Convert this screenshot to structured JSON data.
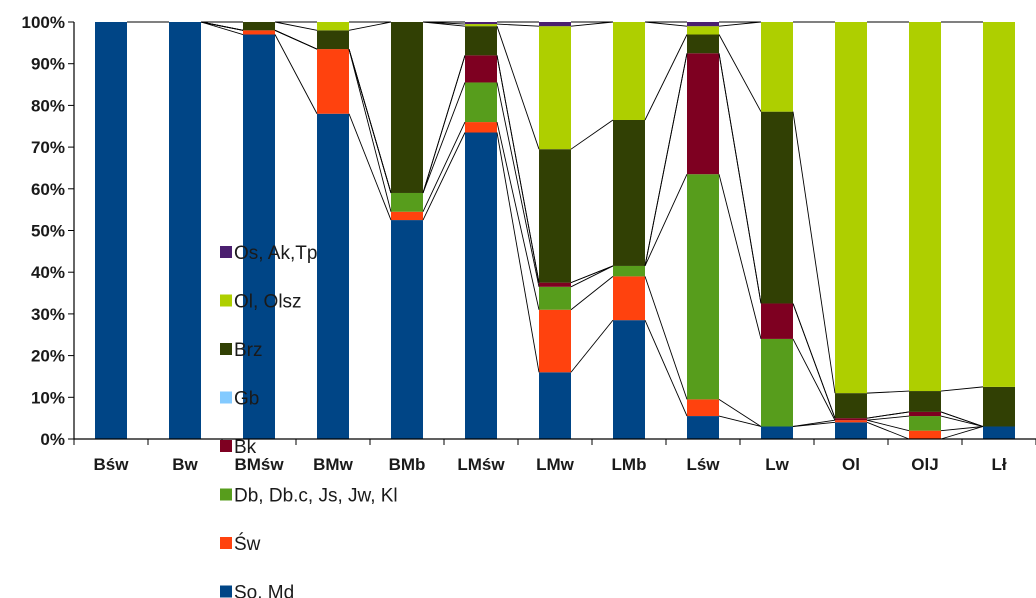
{
  "chart_data": {
    "type": "bar",
    "stacked": "percent",
    "series_lines": true,
    "categories": [
      "Bśw",
      "Bw",
      "BMśw",
      "BMw",
      "BMb",
      "LMśw",
      "LMw",
      "LMb",
      "Lśw",
      "Lw",
      "Ol",
      "OlJ",
      "Lł"
    ],
    "ylim": [
      0,
      100
    ],
    "yticks": [
      "0%",
      "10%",
      "20%",
      "30%",
      "40%",
      "50%",
      "60%",
      "70%",
      "80%",
      "90%",
      "100%"
    ],
    "grid": false,
    "legend_position": "left-inside",
    "series": [
      {
        "name": "So, Md",
        "color": "#004586",
        "values": [
          100,
          100,
          97,
          78,
          52.5,
          73.5,
          16,
          28.5,
          5.5,
          3,
          4,
          0,
          3
        ]
      },
      {
        "name": "Św",
        "color": "#ff420e",
        "values": [
          0,
          0,
          1,
          15.5,
          2,
          2.5,
          15,
          10.5,
          4,
          0,
          0.5,
          2,
          0
        ]
      },
      {
        "name": "Db, Db.c, Js, Jw, Kl",
        "color": "#579d1c",
        "values": [
          0,
          0,
          0,
          0,
          4.5,
          9.5,
          5.5,
          2.5,
          54,
          21,
          0,
          3.5,
          0
        ]
      },
      {
        "name": "Bk",
        "color": "#7e0021",
        "values": [
          0,
          0,
          0,
          0,
          0,
          6.5,
          1,
          0,
          29,
          8.5,
          0.5,
          1,
          0
        ]
      },
      {
        "name": "Gb",
        "color": "#83caff",
        "values": [
          0,
          0,
          0,
          0,
          0,
          0,
          0,
          0,
          0,
          0,
          0,
          0,
          0
        ]
      },
      {
        "name": "Brz",
        "color": "#314004",
        "values": [
          0,
          0,
          2,
          4.5,
          41,
          7,
          32,
          35,
          4.5,
          46,
          6,
          5,
          9.5
        ]
      },
      {
        "name": "Ol, Olsz",
        "color": "#aecf00",
        "values": [
          0,
          0,
          0,
          2,
          0,
          0.5,
          29.5,
          23.5,
          2,
          21.5,
          89,
          88.5,
          87.5
        ]
      },
      {
        "name": "Os, Ak,Tp",
        "color": "#4b1f6f",
        "values": [
          0,
          0,
          0,
          0,
          0,
          0.5,
          1,
          0,
          1,
          0,
          0,
          0,
          0
        ]
      }
    ]
  }
}
